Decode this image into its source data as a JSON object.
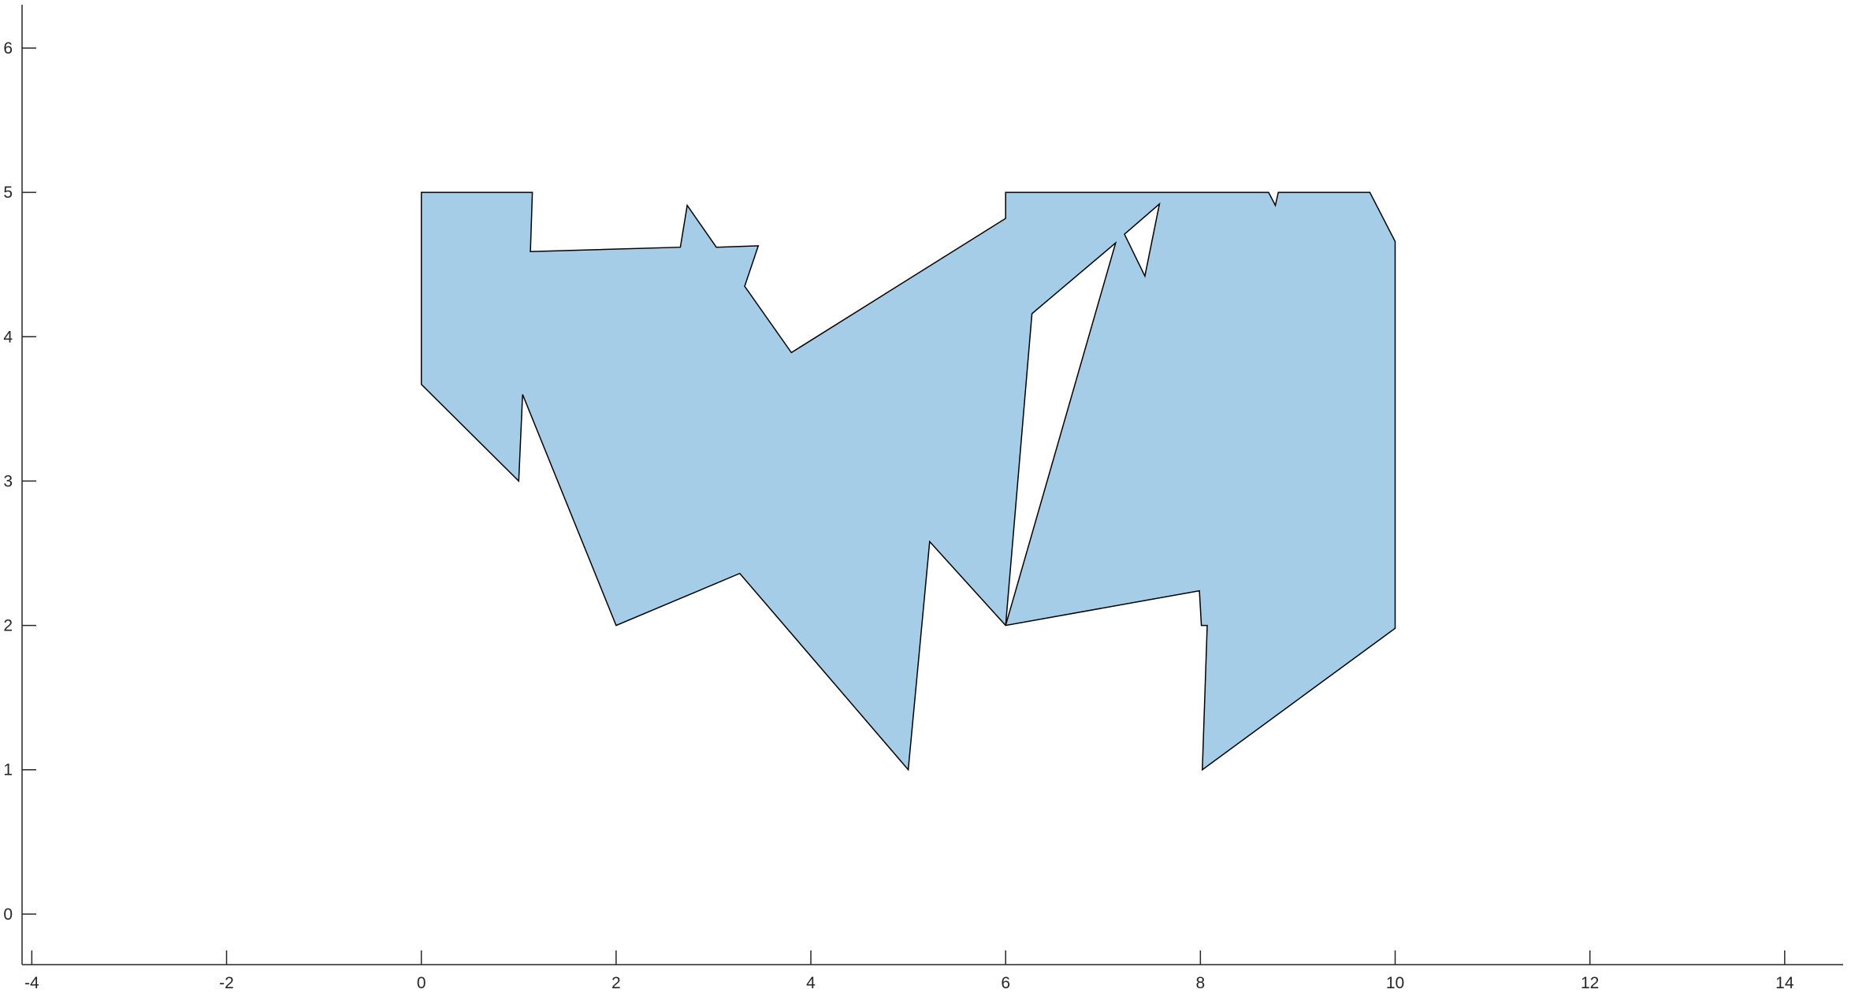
{
  "chart_data": {
    "type": "area",
    "title": "",
    "xlabel": "",
    "ylabel": "",
    "xlim": [
      -4.1,
      14.6
    ],
    "ylim": [
      -0.35,
      6.3
    ],
    "xticks": [
      -4,
      -2,
      0,
      2,
      4,
      6,
      8,
      10,
      12,
      14
    ],
    "yticks": [
      0,
      1,
      2,
      3,
      4,
      5,
      6
    ],
    "xtick_labels": [
      "-4",
      "-2",
      "0",
      "2",
      "4",
      "6",
      "8",
      "10",
      "12",
      "14"
    ],
    "ytick_labels": [
      "0",
      "1",
      "2",
      "3",
      "4",
      "5",
      "6"
    ],
    "grid": false,
    "fill_color": "#a6cde8",
    "edge_color": "#000000",
    "shape": {
      "outer": [
        [
          0,
          5
        ],
        [
          1.14,
          5
        ],
        [
          1.12,
          4.59
        ],
        [
          2.66,
          4.62
        ],
        [
          2.73,
          4.91
        ],
        [
          3.03,
          4.62
        ],
        [
          3.46,
          4.63
        ],
        [
          3.32,
          4.35
        ],
        [
          3.8,
          3.89
        ],
        [
          6,
          4.82
        ],
        [
          6,
          5
        ],
        [
          8.7,
          5
        ],
        [
          8.77,
          4.91
        ],
        [
          8.8,
          5
        ],
        [
          9.74,
          5
        ],
        [
          10,
          4.66
        ],
        [
          10,
          1.98
        ],
        [
          8.02,
          1
        ],
        [
          8.07,
          2
        ],
        [
          8.01,
          2
        ],
        [
          7.99,
          2.24
        ],
        [
          6,
          2
        ],
        [
          5.22,
          2.58
        ],
        [
          5,
          1
        ],
        [
          3.27,
          2.36
        ],
        [
          2,
          2
        ],
        [
          1.04,
          3.6
        ],
        [
          1,
          3
        ],
        [
          0,
          3.67
        ]
      ],
      "holes": [
        [
          [
            6,
            2
          ],
          [
            6.27,
            4.16
          ],
          [
            7.13,
            4.65
          ]
        ],
        [
          [
            7.22,
            4.71
          ],
          [
            7.58,
            4.92
          ],
          [
            7.43,
            4.42
          ]
        ]
      ]
    }
  }
}
